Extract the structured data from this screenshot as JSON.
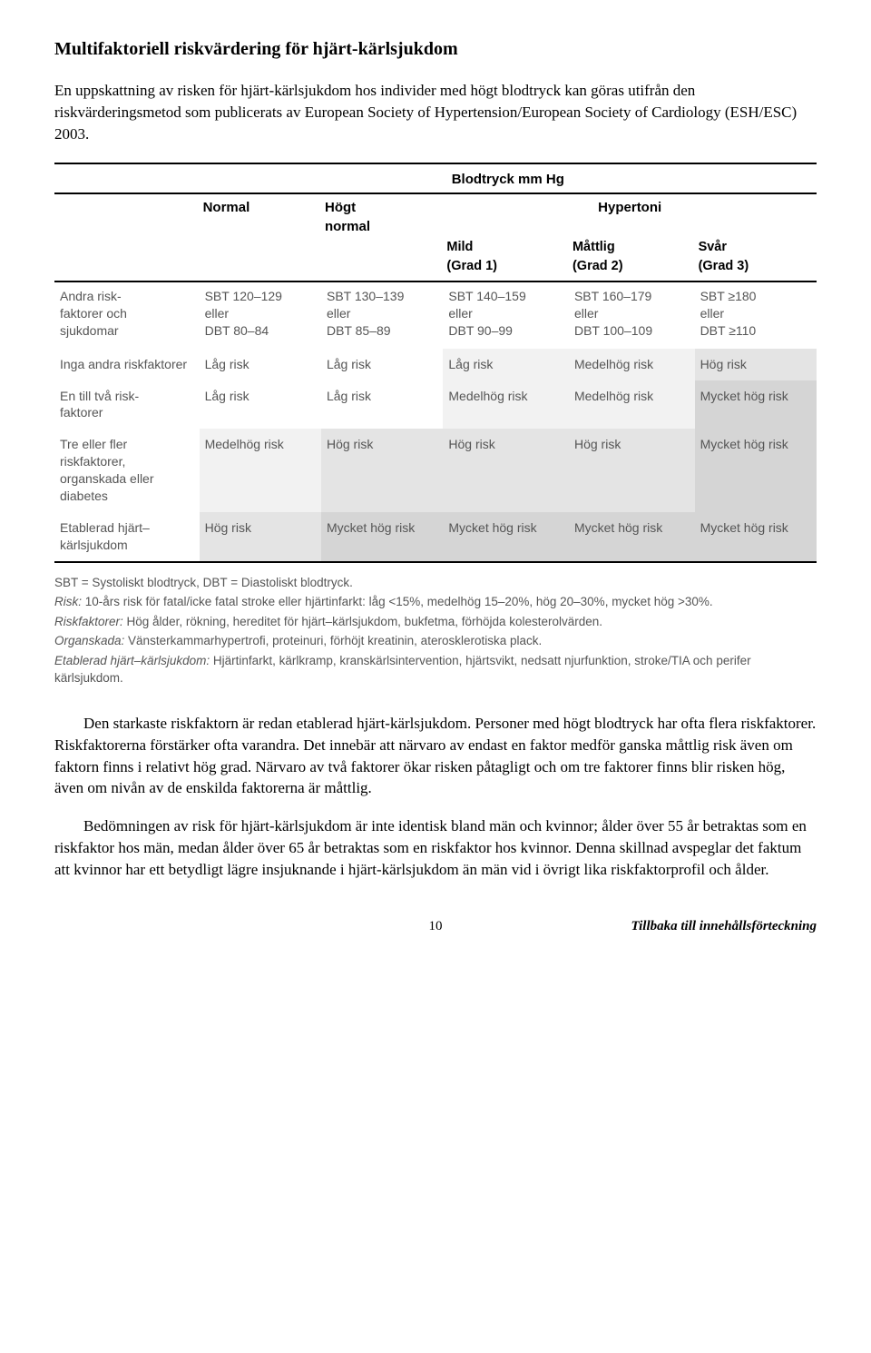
{
  "title": "Multifaktoriell riskvärdering för hjärt-kärlsjukdom",
  "intro": "En uppskattning av risken för hjärt-kärlsjukdom hos individer med högt blodtryck kan göras utifrån den riskvärderingsmetod som publicerats av European Society of Hypertension/European Society of Cardiology (ESH/ESC) 2003.",
  "table": {
    "super_header": "Blodtryck mm Hg",
    "top_cols": [
      "Normal",
      "Högt normal",
      "Hypertoni"
    ],
    "hypertoni_sub": [
      "Mild (Grad 1)",
      "Måttlig (Grad 2)",
      "Svår (Grad 3)"
    ],
    "range_label": "Andra risk-\nfaktorer och\nsjukdomar",
    "ranges": [
      "SBT 120–129\neller\nDBT 80–84",
      "SBT 130–139\neller\nDBT 85–89",
      "SBT 140–159\neller\nDBT 90–99",
      "SBT 160–179\neller\nDBT 100–109",
      "SBT ≥180\neller\nDBT ≥110"
    ],
    "rows": [
      {
        "label": "Inga andra riskfaktorer",
        "cells": [
          {
            "t": "Låg risk",
            "bg": ""
          },
          {
            "t": "Låg risk",
            "bg": ""
          },
          {
            "t": "Låg risk",
            "bg": "cell-gray1"
          },
          {
            "t": "Medelhög risk",
            "bg": "cell-gray1"
          },
          {
            "t": "Hög risk",
            "bg": "cell-gray2"
          }
        ]
      },
      {
        "label": "En till två risk-\nfaktorer",
        "cells": [
          {
            "t": "Låg risk",
            "bg": ""
          },
          {
            "t": "Låg risk",
            "bg": ""
          },
          {
            "t": "Medelhög risk",
            "bg": "cell-gray1"
          },
          {
            "t": "Medelhög risk",
            "bg": "cell-gray1"
          },
          {
            "t": "Mycket hög risk",
            "bg": "cell-gray3"
          }
        ]
      },
      {
        "label": "Tre eller fler riskfaktorer, organskada eller diabetes",
        "cells": [
          {
            "t": "Medelhög risk",
            "bg": "cell-gray1"
          },
          {
            "t": "Hög risk",
            "bg": "cell-gray2"
          },
          {
            "t": "Hög risk",
            "bg": "cell-gray2"
          },
          {
            "t": "Hög risk",
            "bg": "cell-gray2"
          },
          {
            "t": "Mycket hög risk",
            "bg": "cell-gray3"
          }
        ]
      },
      {
        "label": "Etablerad hjärt–\nkärlsjukdom",
        "cells": [
          {
            "t": "Hög risk",
            "bg": "cell-gray2"
          },
          {
            "t": "Mycket hög risk",
            "bg": "cell-gray3"
          },
          {
            "t": "Mycket hög risk",
            "bg": "cell-gray3"
          },
          {
            "t": "Mycket hög risk",
            "bg": "cell-gray3"
          },
          {
            "t": "Mycket hög risk",
            "bg": "cell-gray3"
          }
        ]
      }
    ]
  },
  "footnotes": [
    {
      "label": "",
      "text": "SBT = Systoliskt blodtryck, DBT = Diastoliskt blodtryck."
    },
    {
      "label": "Risk:",
      "text": "10-års risk för fatal/icke fatal stroke eller hjärtinfarkt: låg <15%, medelhög 15–20%, hög 20–30%, mycket hög >30%."
    },
    {
      "label": "Riskfaktorer:",
      "text": "Hög ålder, rökning, hereditet för hjärt–kärlsjukdom, bukfetma, förhöjda kolesterolvärden."
    },
    {
      "label": "Organskada:",
      "text": "Vänsterkammarhypertrofi, proteinuri, förhöjt kreatinin, aterosklerotiska plack."
    },
    {
      "label": "Etablerad hjärt–kärlsjukdom:",
      "text": "Hjärtinfarkt, kärlkramp, kranskärlsintervention, hjärtsvikt, nedsatt njurfunktion, stroke/TIA och perifer kärlsjukdom."
    }
  ],
  "paragraphs": [
    "Den starkaste riskfaktorn är redan etablerad hjärt-kärlsjukdom. Personer med högt blodtryck har ofta flera riskfaktorer. Riskfaktorerna förstärker ofta varandra. Det innebär att närvaro av endast en faktor medför ganska måttlig risk även om faktorn finns i relativt hög grad.   Närvaro av två faktorer ökar risken påtagligt och om tre faktorer finns blir risken hög, även om nivån av de enskilda faktorerna är måttlig.",
    "Bedömningen av risk för hjärt-kärlsjukdom är inte identisk bland män och kvinnor; ålder över 55 år betraktas som en riskfaktor hos män, medan ålder över 65 år betraktas som en riskfaktor hos kvinnor. Denna skillnad avspeglar det faktum att kvinnor har ett betydligt lägre insjuknande i hjärt-kärlsjukdom än män vid i övrigt lika riskfaktorprofil och ålder."
  ],
  "page_number": "10",
  "back_link": "Tillbaka till innehållsförteckning"
}
